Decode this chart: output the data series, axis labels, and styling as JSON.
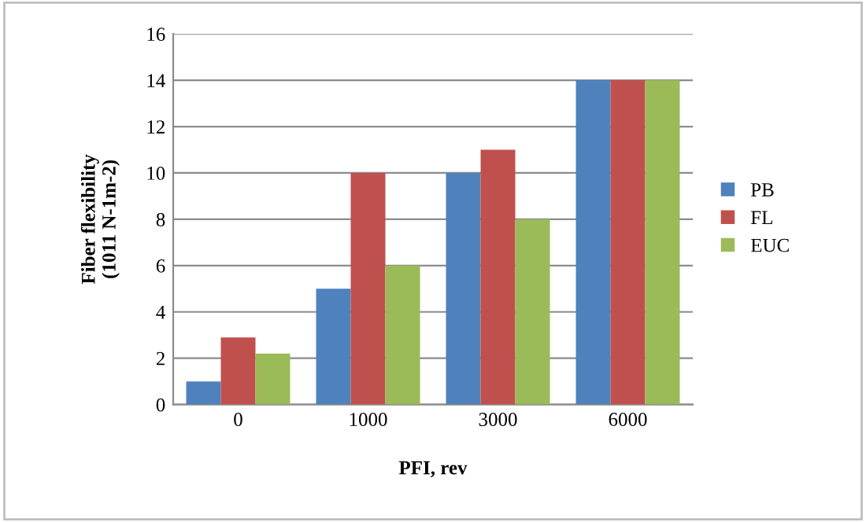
{
  "chart_data": {
    "type": "bar",
    "xlabel": "PFI, rev",
    "ylabel": "Fiber flexibility\n(1011 N-1m-2)",
    "categories": [
      "0",
      "1000",
      "3000",
      "6000"
    ],
    "series": [
      {
        "name": "PB",
        "color": "#4f81bd",
        "values": [
          1,
          5,
          10,
          14
        ]
      },
      {
        "name": "FL",
        "color": "#c0504d",
        "values": [
          2.9,
          10,
          11,
          14
        ]
      },
      {
        "name": "EUC",
        "color": "#9bbb59",
        "values": [
          2.2,
          6,
          8,
          14
        ]
      }
    ],
    "ylim": [
      0,
      16
    ],
    "yticks": [
      0,
      2,
      4,
      6,
      8,
      10,
      12,
      14,
      16
    ],
    "grid": "y",
    "legend": "right"
  }
}
